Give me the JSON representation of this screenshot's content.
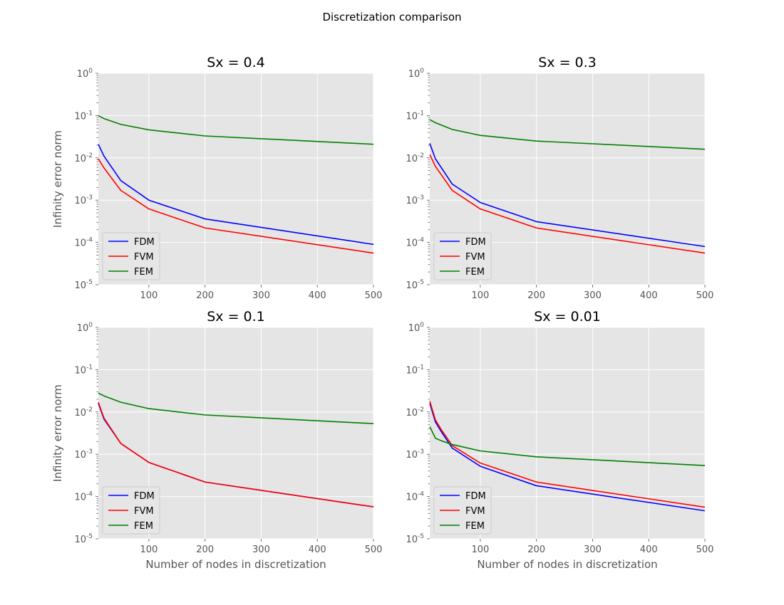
{
  "figure": {
    "suptitle": "Discretization comparison"
  },
  "chart_data": [
    {
      "type": "line",
      "title": "Sx = 0.4",
      "xlabel": "",
      "ylabel": "Infinity error norm",
      "yscale": "log",
      "xlim": [
        10,
        500
      ],
      "ylim": [
        1e-05,
        1
      ],
      "xticks": [
        "100",
        "200",
        "300",
        "400",
        "500"
      ],
      "yticks": [
        "10^-5",
        "10^-4",
        "10^-3",
        "10^-2",
        "10^-1",
        "10^0"
      ],
      "grid": true,
      "legend_position": "lower-left",
      "x": [
        10,
        20,
        50,
        100,
        200,
        500
      ],
      "series": [
        {
          "name": "FDM",
          "color": "#0000ff",
          "values": [
            0.021,
            0.011,
            0.0029,
            0.001,
            0.00036,
            9e-05
          ]
        },
        {
          "name": "FVM",
          "color": "#ff0000",
          "values": [
            0.0095,
            0.0058,
            0.0017,
            0.00062,
            0.00022,
            5.6e-05
          ]
        },
        {
          "name": "FEM",
          "color": "#008000",
          "values": [
            0.1,
            0.085,
            0.062,
            0.046,
            0.033,
            0.021
          ]
        }
      ]
    },
    {
      "type": "line",
      "title": "Sx = 0.3",
      "xlabel": "",
      "ylabel": "",
      "yscale": "log",
      "xlim": [
        10,
        500
      ],
      "ylim": [
        1e-05,
        1
      ],
      "xticks": [
        "100",
        "200",
        "300",
        "400",
        "500"
      ],
      "yticks": [
        "10^-5",
        "10^-4",
        "10^-3",
        "10^-2",
        "10^-1",
        "10^0"
      ],
      "grid": true,
      "legend_position": "lower-left",
      "x": [
        10,
        20,
        50,
        100,
        200,
        500
      ],
      "series": [
        {
          "name": "FDM",
          "color": "#0000ff",
          "values": [
            0.022,
            0.0095,
            0.0024,
            0.00088,
            0.00031,
            8e-05
          ]
        },
        {
          "name": "FVM",
          "color": "#ff0000",
          "values": [
            0.012,
            0.0063,
            0.0017,
            0.00062,
            0.00022,
            5.6e-05
          ]
        },
        {
          "name": "FEM",
          "color": "#008000",
          "values": [
            0.08,
            0.068,
            0.047,
            0.034,
            0.025,
            0.016
          ]
        }
      ]
    },
    {
      "type": "line",
      "title": "Sx = 0.1",
      "xlabel": "Number of nodes in discretization",
      "ylabel": "Infinity error norm",
      "yscale": "log",
      "xlim": [
        10,
        500
      ],
      "ylim": [
        1e-05,
        1
      ],
      "xticks": [
        "100",
        "200",
        "300",
        "400",
        "500"
      ],
      "yticks": [
        "10^-5",
        "10^-4",
        "10^-3",
        "10^-2",
        "10^-1",
        "10^0"
      ],
      "grid": true,
      "legend_position": "lower-left",
      "x": [
        10,
        20,
        50,
        100,
        200,
        500
      ],
      "series": [
        {
          "name": "FDM",
          "color": "#0000ff",
          "values": [
            0.016,
            0.0068,
            0.0018,
            0.00064,
            0.00022,
            5.7e-05
          ]
        },
        {
          "name": "FVM",
          "color": "#ff0000",
          "values": [
            0.017,
            0.0072,
            0.0018,
            0.00064,
            0.00022,
            5.7e-05
          ]
        },
        {
          "name": "FEM",
          "color": "#008000",
          "values": [
            0.028,
            0.024,
            0.017,
            0.012,
            0.0085,
            0.0053
          ]
        }
      ]
    },
    {
      "type": "line",
      "title": "Sx = 0.01",
      "xlabel": "Number of nodes in discretization",
      "ylabel": "",
      "yscale": "log",
      "xlim": [
        10,
        500
      ],
      "ylim": [
        1e-05,
        1
      ],
      "xticks": [
        "100",
        "200",
        "300",
        "400",
        "500"
      ],
      "yticks": [
        "10^-5",
        "10^-4",
        "10^-3",
        "10^-2",
        "10^-1",
        "10^0"
      ],
      "grid": true,
      "legend_position": "lower-left",
      "x": [
        10,
        20,
        30,
        50,
        100,
        200,
        500
      ],
      "series": [
        {
          "name": "FDM",
          "color": "#0000ff",
          "values": [
            0.016,
            0.0058,
            0.0035,
            0.0014,
            0.00052,
            0.00018,
            4.6e-05
          ]
        },
        {
          "name": "FVM",
          "color": "#ff0000",
          "values": [
            0.018,
            0.0065,
            0.0039,
            0.0016,
            0.00062,
            0.00022,
            5.6e-05
          ]
        },
        {
          "name": "FEM",
          "color": "#008000",
          "values": [
            0.0045,
            0.0024,
            0.0021,
            0.0017,
            0.0012,
            0.00087,
            0.00054
          ]
        }
      ]
    }
  ]
}
